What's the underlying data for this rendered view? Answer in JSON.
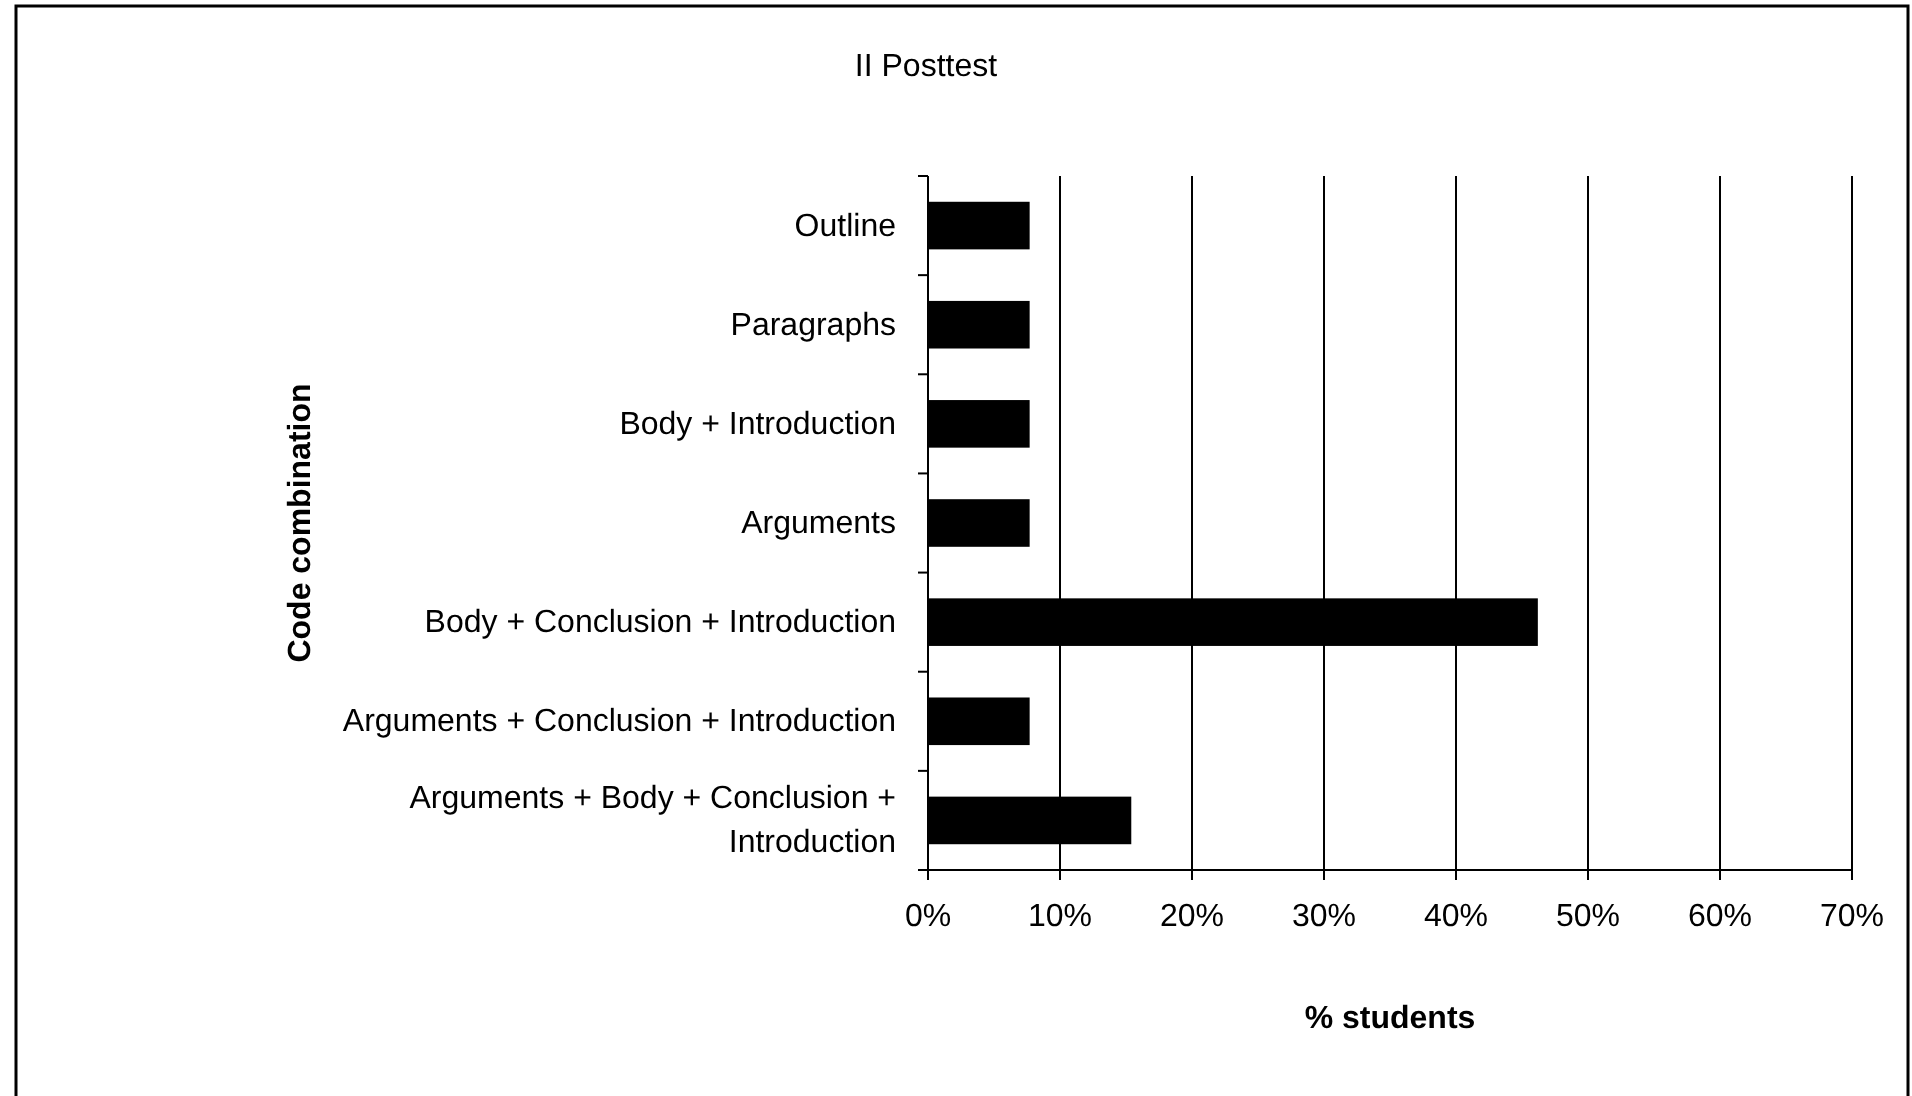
{
  "chart_data": {
    "type": "bar",
    "orientation": "horizontal",
    "title": "II Posttest",
    "xlabel": "% students",
    "ylabel": "Code combination",
    "categories": [
      "Outline",
      "Paragraphs",
      "Body + Introduction",
      "Arguments",
      "Body + Conclusion + Introduction",
      "Arguments + Conclusion + Introduction",
      "Arguments + Body + Conclusion + Introduction"
    ],
    "values": [
      7.7,
      7.7,
      7.7,
      7.7,
      46.2,
      7.7,
      15.4
    ],
    "color": "#000000",
    "xlim": [
      0,
      70
    ],
    "xticks": [
      {
        "value": 0,
        "label": "0%"
      },
      {
        "value": 10,
        "label": "10%"
      },
      {
        "value": 20,
        "label": "20%"
      },
      {
        "value": 30,
        "label": "30%"
      },
      {
        "value": 40,
        "label": "40%"
      },
      {
        "value": 50,
        "label": "50%"
      },
      {
        "value": 60,
        "label": "60%"
      },
      {
        "value": 70,
        "label": "70%"
      }
    ],
    "grid": "x"
  }
}
